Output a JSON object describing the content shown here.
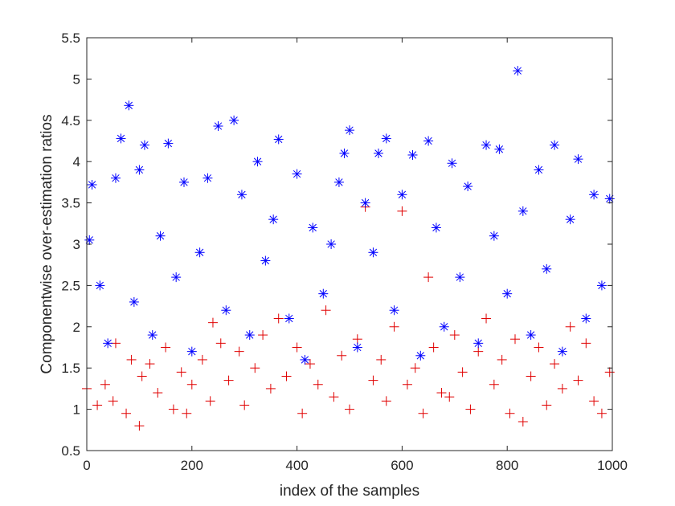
{
  "chart_data": {
    "type": "scatter",
    "title": "",
    "xlabel": "index of the samples",
    "ylabel": "Componentwise over-estimation ratios",
    "xlim": [
      0,
      1000
    ],
    "ylim": [
      0.5,
      5.5
    ],
    "xticks": [
      0,
      200,
      400,
      600,
      800,
      1000
    ],
    "yticks": [
      0.5,
      1,
      1.5,
      2,
      2.5,
      3,
      3.5,
      4,
      4.5,
      5,
      5.5
    ],
    "xtick_labels": [
      "0",
      "200",
      "400",
      "600",
      "800",
      "1000"
    ],
    "ytick_labels": [
      "0.5",
      "1",
      "1.5",
      "2",
      "2.5",
      "3",
      "3.5",
      "4",
      "4.5",
      "5",
      "5.5"
    ],
    "grid": false,
    "legend": "none",
    "series": [
      {
        "marker": "plus",
        "color": "#e00000",
        "points": [
          [
            0,
            1.25
          ],
          [
            20,
            1.05
          ],
          [
            35,
            1.3
          ],
          [
            50,
            1.1
          ],
          [
            55,
            1.8
          ],
          [
            75,
            0.95
          ],
          [
            85,
            1.6
          ],
          [
            100,
            0.8
          ],
          [
            105,
            1.4
          ],
          [
            120,
            1.55
          ],
          [
            135,
            1.2
          ],
          [
            150,
            1.75
          ],
          [
            165,
            1.0
          ],
          [
            180,
            1.45
          ],
          [
            190,
            0.95
          ],
          [
            200,
            1.3
          ],
          [
            220,
            1.6
          ],
          [
            235,
            1.1
          ],
          [
            240,
            2.05
          ],
          [
            255,
            1.8
          ],
          [
            270,
            1.35
          ],
          [
            290,
            1.7
          ],
          [
            300,
            1.05
          ],
          [
            320,
            1.5
          ],
          [
            335,
            1.9
          ],
          [
            350,
            1.25
          ],
          [
            365,
            2.1
          ],
          [
            380,
            1.4
          ],
          [
            400,
            1.75
          ],
          [
            410,
            0.95
          ],
          [
            425,
            1.55
          ],
          [
            440,
            1.3
          ],
          [
            455,
            2.2
          ],
          [
            470,
            1.15
          ],
          [
            485,
            1.65
          ],
          [
            500,
            1.0
          ],
          [
            515,
            1.85
          ],
          [
            530,
            3.45
          ],
          [
            545,
            1.35
          ],
          [
            560,
            1.6
          ],
          [
            570,
            1.1
          ],
          [
            585,
            2.0
          ],
          [
            600,
            3.4
          ],
          [
            610,
            1.3
          ],
          [
            625,
            1.5
          ],
          [
            640,
            0.95
          ],
          [
            650,
            2.6
          ],
          [
            660,
            1.75
          ],
          [
            675,
            1.2
          ],
          [
            690,
            1.15
          ],
          [
            700,
            1.9
          ],
          [
            715,
            1.45
          ],
          [
            730,
            1.0
          ],
          [
            745,
            1.7
          ],
          [
            760,
            2.1
          ],
          [
            775,
            1.3
          ],
          [
            790,
            1.6
          ],
          [
            805,
            0.95
          ],
          [
            815,
            1.85
          ],
          [
            830,
            0.85
          ],
          [
            845,
            1.4
          ],
          [
            860,
            1.75
          ],
          [
            875,
            1.05
          ],
          [
            890,
            1.55
          ],
          [
            905,
            1.25
          ],
          [
            920,
            2.0
          ],
          [
            935,
            1.35
          ],
          [
            950,
            1.8
          ],
          [
            965,
            1.1
          ],
          [
            980,
            0.95
          ],
          [
            995,
            1.45
          ]
        ]
      },
      {
        "marker": "asterisk",
        "color": "#0000ff",
        "points": [
          [
            5,
            3.05
          ],
          [
            10,
            3.72
          ],
          [
            25,
            2.5
          ],
          [
            40,
            1.8
          ],
          [
            55,
            3.8
          ],
          [
            65,
            4.28
          ],
          [
            80,
            4.68
          ],
          [
            90,
            2.3
          ],
          [
            100,
            3.9
          ],
          [
            110,
            4.2
          ],
          [
            125,
            1.9
          ],
          [
            140,
            3.1
          ],
          [
            155,
            4.22
          ],
          [
            170,
            2.6
          ],
          [
            185,
            3.75
          ],
          [
            200,
            1.7
          ],
          [
            215,
            2.9
          ],
          [
            230,
            3.8
          ],
          [
            250,
            4.43
          ],
          [
            265,
            2.2
          ],
          [
            280,
            4.5
          ],
          [
            295,
            3.6
          ],
          [
            310,
            1.9
          ],
          [
            325,
            4.0
          ],
          [
            340,
            2.8
          ],
          [
            355,
            3.3
          ],
          [
            365,
            4.27
          ],
          [
            385,
            2.1
          ],
          [
            400,
            3.85
          ],
          [
            415,
            1.6
          ],
          [
            430,
            3.2
          ],
          [
            450,
            2.4
          ],
          [
            465,
            3.0
          ],
          [
            480,
            3.75
          ],
          [
            490,
            4.1
          ],
          [
            500,
            4.38
          ],
          [
            515,
            1.75
          ],
          [
            530,
            3.5
          ],
          [
            545,
            2.9
          ],
          [
            555,
            4.1
          ],
          [
            570,
            4.28
          ],
          [
            585,
            2.2
          ],
          [
            600,
            3.6
          ],
          [
            620,
            4.08
          ],
          [
            635,
            1.65
          ],
          [
            650,
            4.25
          ],
          [
            665,
            3.2
          ],
          [
            680,
            2.0
          ],
          [
            695,
            3.98
          ],
          [
            710,
            2.6
          ],
          [
            725,
            3.7
          ],
          [
            745,
            1.8
          ],
          [
            760,
            4.2
          ],
          [
            775,
            3.1
          ],
          [
            785,
            4.15
          ],
          [
            800,
            2.4
          ],
          [
            820,
            5.1
          ],
          [
            830,
            3.4
          ],
          [
            845,
            1.9
          ],
          [
            860,
            3.9
          ],
          [
            875,
            2.7
          ],
          [
            890,
            4.2
          ],
          [
            905,
            1.7
          ],
          [
            920,
            3.3
          ],
          [
            935,
            4.03
          ],
          [
            950,
            2.1
          ],
          [
            965,
            3.6
          ],
          [
            980,
            2.5
          ],
          [
            995,
            3.55
          ]
        ]
      }
    ]
  }
}
